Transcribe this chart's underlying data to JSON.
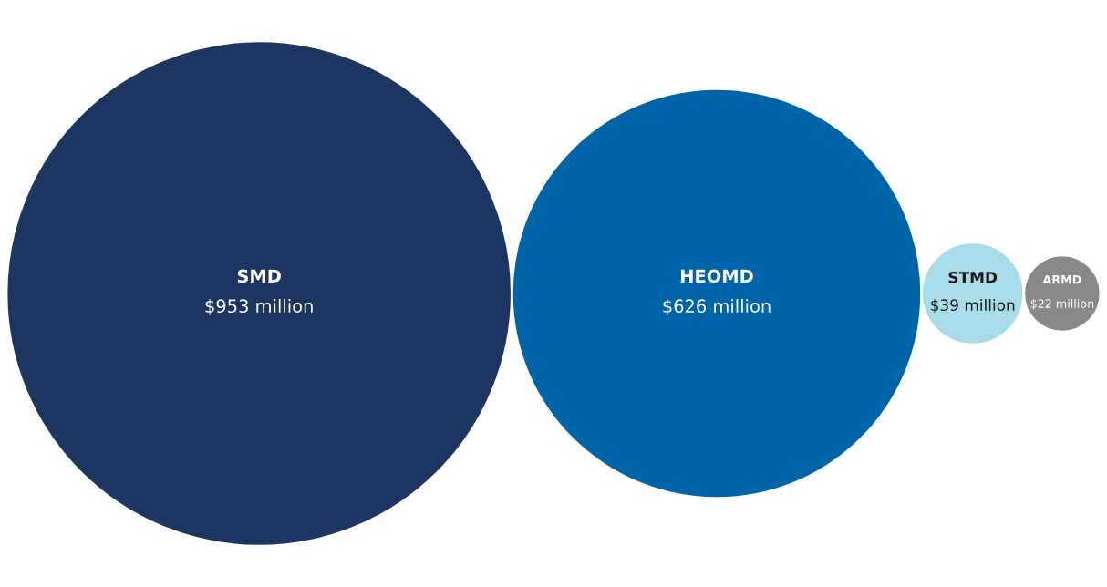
{
  "chart_data": {
    "type": "other",
    "categories": [
      "SMD",
      "HEOMD",
      "STMD",
      "ARMD"
    ],
    "values": [
      953,
      626,
      39,
      22
    ],
    "value_labels": [
      "$953 million",
      "$626 million",
      "$39 million",
      "$22 million"
    ],
    "colors": [
      "#1d3561",
      "#0064a9",
      "#a9dcea",
      "#8a8989"
    ]
  }
}
